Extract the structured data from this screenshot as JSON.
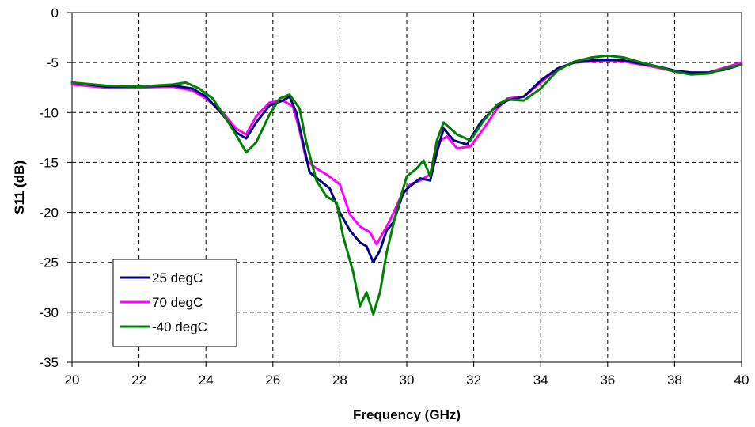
{
  "chart_data": {
    "type": "line",
    "title": "",
    "xlabel": "Frequency (GHz)",
    "ylabel": "S11 (dB)",
    "xlim": [
      20,
      40
    ],
    "ylim": [
      -35,
      0
    ],
    "x_ticks": [
      20,
      22,
      24,
      26,
      28,
      30,
      32,
      34,
      36,
      38,
      40
    ],
    "y_ticks": [
      0,
      -5,
      -10,
      -15,
      -20,
      -25,
      -30,
      -35
    ],
    "grid": true,
    "grid_style": "dashed",
    "legend_position": "lower-left",
    "series": [
      {
        "name": "25 degC",
        "color": "#000080",
        "points": [
          [
            20,
            -7.0
          ],
          [
            21,
            -7.4
          ],
          [
            22,
            -7.4
          ],
          [
            23,
            -7.3
          ],
          [
            23.6,
            -7.6
          ],
          [
            24,
            -8.4
          ],
          [
            24.5,
            -10.2
          ],
          [
            24.9,
            -12.0
          ],
          [
            25.2,
            -12.6
          ],
          [
            25.5,
            -11.0
          ],
          [
            25.9,
            -9.3
          ],
          [
            26.3,
            -8.8
          ],
          [
            26.5,
            -8.4
          ],
          [
            26.7,
            -10.0
          ],
          [
            26.9,
            -13.0
          ],
          [
            27.1,
            -16.0
          ],
          [
            27.4,
            -16.8
          ],
          [
            27.7,
            -17.6
          ],
          [
            28.0,
            -20.0
          ],
          [
            28.3,
            -21.8
          ],
          [
            28.6,
            -23.0
          ],
          [
            28.8,
            -23.4
          ],
          [
            29.0,
            -25.0
          ],
          [
            29.2,
            -23.8
          ],
          [
            29.4,
            -21.8
          ],
          [
            29.6,
            -21.0
          ],
          [
            29.9,
            -18.0
          ],
          [
            30.1,
            -17.4
          ],
          [
            30.4,
            -16.6
          ],
          [
            30.7,
            -16.8
          ],
          [
            30.9,
            -14.0
          ],
          [
            31.1,
            -11.6
          ],
          [
            31.4,
            -12.8
          ],
          [
            31.8,
            -13.2
          ],
          [
            32.2,
            -11.0
          ],
          [
            32.6,
            -9.6
          ],
          [
            33.0,
            -8.8
          ],
          [
            33.5,
            -8.4
          ],
          [
            34.0,
            -6.8
          ],
          [
            34.5,
            -5.6
          ],
          [
            35.0,
            -5.0
          ],
          [
            35.5,
            -4.8
          ],
          [
            36.0,
            -4.7
          ],
          [
            36.5,
            -4.8
          ],
          [
            37.0,
            -5.1
          ],
          [
            37.5,
            -5.4
          ],
          [
            38.0,
            -5.8
          ],
          [
            38.5,
            -6.0
          ],
          [
            39.0,
            -6.0
          ],
          [
            39.5,
            -5.7
          ],
          [
            40.0,
            -5.2
          ]
        ]
      },
      {
        "name": "70 degC",
        "color": "#ff00ff",
        "points": [
          [
            20,
            -7.2
          ],
          [
            21,
            -7.5
          ],
          [
            22,
            -7.5
          ],
          [
            23,
            -7.4
          ],
          [
            23.6,
            -7.8
          ],
          [
            24,
            -8.6
          ],
          [
            24.5,
            -10.0
          ],
          [
            24.9,
            -11.6
          ],
          [
            25.2,
            -12.2
          ],
          [
            25.5,
            -10.4
          ],
          [
            25.9,
            -9.0
          ],
          [
            26.3,
            -8.8
          ],
          [
            26.6,
            -9.4
          ],
          [
            26.8,
            -11.8
          ],
          [
            27.0,
            -14.8
          ],
          [
            27.3,
            -15.6
          ],
          [
            27.6,
            -16.2
          ],
          [
            28.0,
            -17.2
          ],
          [
            28.3,
            -20.2
          ],
          [
            28.6,
            -21.4
          ],
          [
            28.9,
            -22.0
          ],
          [
            29.1,
            -23.2
          ],
          [
            29.3,
            -22.0
          ],
          [
            29.5,
            -20.8
          ],
          [
            29.8,
            -18.6
          ],
          [
            30.1,
            -17.2
          ],
          [
            30.4,
            -16.8
          ],
          [
            30.7,
            -16.2
          ],
          [
            30.9,
            -13.0
          ],
          [
            31.2,
            -12.4
          ],
          [
            31.5,
            -13.6
          ],
          [
            31.9,
            -13.4
          ],
          [
            32.3,
            -11.6
          ],
          [
            32.7,
            -9.6
          ],
          [
            33.0,
            -8.6
          ],
          [
            33.5,
            -8.4
          ],
          [
            34.0,
            -7.0
          ],
          [
            34.5,
            -5.6
          ],
          [
            35.0,
            -5.0
          ],
          [
            35.5,
            -4.9
          ],
          [
            36.0,
            -4.8
          ],
          [
            36.5,
            -4.9
          ],
          [
            37.0,
            -5.2
          ],
          [
            37.5,
            -5.5
          ],
          [
            38.0,
            -5.9
          ],
          [
            38.5,
            -6.0
          ],
          [
            39.0,
            -6.0
          ],
          [
            39.5,
            -5.5
          ],
          [
            40.0,
            -5.0
          ]
        ]
      },
      {
        "name": "-40 degC",
        "color": "#008000",
        "points": [
          [
            20,
            -7.0
          ],
          [
            21,
            -7.3
          ],
          [
            22,
            -7.4
          ],
          [
            23,
            -7.2
          ],
          [
            23.4,
            -7.0
          ],
          [
            23.8,
            -7.6
          ],
          [
            24.2,
            -8.6
          ],
          [
            24.6,
            -10.6
          ],
          [
            25.0,
            -12.8
          ],
          [
            25.2,
            -14.0
          ],
          [
            25.5,
            -13.0
          ],
          [
            25.9,
            -10.2
          ],
          [
            26.2,
            -8.6
          ],
          [
            26.5,
            -8.2
          ],
          [
            26.8,
            -9.6
          ],
          [
            27.0,
            -13.0
          ],
          [
            27.3,
            -16.8
          ],
          [
            27.6,
            -18.4
          ],
          [
            27.9,
            -19.0
          ],
          [
            28.1,
            -22.4
          ],
          [
            28.4,
            -26.0
          ],
          [
            28.6,
            -29.4
          ],
          [
            28.8,
            -28.0
          ],
          [
            29.0,
            -30.2
          ],
          [
            29.2,
            -28.0
          ],
          [
            29.4,
            -24.0
          ],
          [
            29.7,
            -19.8
          ],
          [
            30.0,
            -16.4
          ],
          [
            30.3,
            -15.6
          ],
          [
            30.5,
            -14.8
          ],
          [
            30.7,
            -16.4
          ],
          [
            30.9,
            -12.8
          ],
          [
            31.1,
            -11.0
          ],
          [
            31.5,
            -12.2
          ],
          [
            31.9,
            -12.8
          ],
          [
            32.3,
            -10.8
          ],
          [
            32.7,
            -9.2
          ],
          [
            33.0,
            -8.7
          ],
          [
            33.5,
            -8.8
          ],
          [
            34.0,
            -7.6
          ],
          [
            34.5,
            -5.8
          ],
          [
            35.0,
            -4.9
          ],
          [
            35.5,
            -4.5
          ],
          [
            36.0,
            -4.3
          ],
          [
            36.5,
            -4.5
          ],
          [
            37.0,
            -5.0
          ],
          [
            37.5,
            -5.4
          ],
          [
            38.0,
            -5.9
          ],
          [
            38.5,
            -6.2
          ],
          [
            39.0,
            -6.1
          ],
          [
            39.5,
            -5.6
          ],
          [
            40.0,
            -5.2
          ]
        ]
      }
    ]
  }
}
